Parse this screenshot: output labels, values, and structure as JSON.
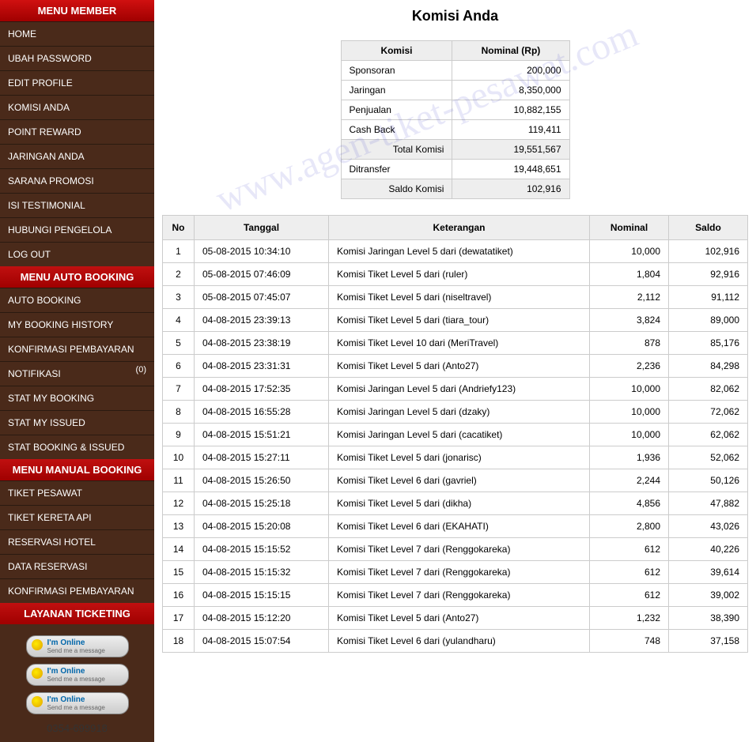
{
  "watermark": "www.agen-tiket-pesawat.com",
  "phone": "0354-699918",
  "sidebar": {
    "groups": [
      {
        "header": "MENU MEMBER",
        "items": [
          {
            "label": "HOME"
          },
          {
            "label": "UBAH PASSWORD"
          },
          {
            "label": "EDIT PROFILE"
          },
          {
            "label": "KOMISI ANDA"
          },
          {
            "label": "POINT REWARD"
          },
          {
            "label": "JARINGAN ANDA"
          },
          {
            "label": "SARANA PROMOSI"
          },
          {
            "label": "ISI TESTIMONIAL"
          },
          {
            "label": "HUBUNGI PENGELOLA"
          },
          {
            "label": "LOG OUT"
          }
        ]
      },
      {
        "header": "MENU AUTO BOOKING",
        "items": [
          {
            "label": "AUTO BOOKING"
          },
          {
            "label": "MY BOOKING HISTORY"
          },
          {
            "label": "KONFIRMASI PEMBAYARAN"
          },
          {
            "label": "NOTIFIKASI",
            "badge": "(0)"
          },
          {
            "label": "STAT MY BOOKING"
          },
          {
            "label": "STAT MY ISSUED"
          },
          {
            "label": "STAT BOOKING & ISSUED"
          }
        ]
      },
      {
        "header": "MENU MANUAL BOOKING",
        "items": [
          {
            "label": "TIKET PESAWAT"
          },
          {
            "label": "TIKET KERETA API"
          },
          {
            "label": "RESERVASI HOTEL"
          },
          {
            "label": "DATA RESERVASI"
          },
          {
            "label": "KONFIRMASI PEMBAYARAN"
          }
        ]
      },
      {
        "header": "LAYANAN TICKETING",
        "items": []
      }
    ]
  },
  "online": {
    "title": "I'm Online",
    "sub": "Send me a message"
  },
  "page": {
    "title": "Komisi Anda"
  },
  "summary": {
    "headers": [
      "Komisi",
      "Nominal (Rp)"
    ],
    "rows": [
      {
        "label": "Sponsoran",
        "value": "200,000"
      },
      {
        "label": "Jaringan",
        "value": "8,350,000"
      },
      {
        "label": "Penjualan",
        "value": "10,882,155"
      },
      {
        "label": "Cash Back",
        "value": "119,411"
      }
    ],
    "totals": [
      {
        "label": "Total Komisi",
        "value": "19,551,567"
      },
      {
        "label": "Ditransfer",
        "value": "19,448,651"
      },
      {
        "label": "Saldo Komisi",
        "value": "102,916"
      }
    ]
  },
  "table": {
    "headers": [
      "No",
      "Tanggal",
      "Keterangan",
      "Nominal",
      "Saldo"
    ],
    "rows": [
      {
        "no": "1",
        "tgl": "05-08-2015 10:34:10",
        "ket": "Komisi Jaringan Level 5 dari (dewatatiket)",
        "nom": "10,000",
        "saldo": "102,916"
      },
      {
        "no": "2",
        "tgl": "05-08-2015 07:46:09",
        "ket": "Komisi Tiket Level 5 dari (ruler)",
        "nom": "1,804",
        "saldo": "92,916"
      },
      {
        "no": "3",
        "tgl": "05-08-2015 07:45:07",
        "ket": "Komisi Tiket Level 5 dari (niseltravel)",
        "nom": "2,112",
        "saldo": "91,112"
      },
      {
        "no": "4",
        "tgl": "04-08-2015 23:39:13",
        "ket": "Komisi Tiket Level 5 dari (tiara_tour)",
        "nom": "3,824",
        "saldo": "89,000"
      },
      {
        "no": "5",
        "tgl": "04-08-2015 23:38:19",
        "ket": "Komisi Tiket Level 10 dari (MeriTravel)",
        "nom": "878",
        "saldo": "85,176"
      },
      {
        "no": "6",
        "tgl": "04-08-2015 23:31:31",
        "ket": "Komisi Tiket Level 5 dari (Anto27)",
        "nom": "2,236",
        "saldo": "84,298"
      },
      {
        "no": "7",
        "tgl": "04-08-2015 17:52:35",
        "ket": "Komisi Jaringan Level 5 dari (Andriefy123)",
        "nom": "10,000",
        "saldo": "82,062"
      },
      {
        "no": "8",
        "tgl": "04-08-2015 16:55:28",
        "ket": "Komisi Jaringan Level 5 dari (dzaky)",
        "nom": "10,000",
        "saldo": "72,062"
      },
      {
        "no": "9",
        "tgl": "04-08-2015 15:51:21",
        "ket": "Komisi Jaringan Level 5 dari (cacatiket)",
        "nom": "10,000",
        "saldo": "62,062"
      },
      {
        "no": "10",
        "tgl": "04-08-2015 15:27:11",
        "ket": "Komisi Tiket Level 5 dari (jonarisc)",
        "nom": "1,936",
        "saldo": "52,062"
      },
      {
        "no": "11",
        "tgl": "04-08-2015 15:26:50",
        "ket": "Komisi Tiket Level 6 dari (gavriel)",
        "nom": "2,244",
        "saldo": "50,126"
      },
      {
        "no": "12",
        "tgl": "04-08-2015 15:25:18",
        "ket": "Komisi Tiket Level 5 dari (dikha)",
        "nom": "4,856",
        "saldo": "47,882"
      },
      {
        "no": "13",
        "tgl": "04-08-2015 15:20:08",
        "ket": "Komisi Tiket Level 6 dari (EKAHATI)",
        "nom": "2,800",
        "saldo": "43,026"
      },
      {
        "no": "14",
        "tgl": "04-08-2015 15:15:52",
        "ket": "Komisi Tiket Level 7 dari (Renggokareka)",
        "nom": "612",
        "saldo": "40,226"
      },
      {
        "no": "15",
        "tgl": "04-08-2015 15:15:32",
        "ket": "Komisi Tiket Level 7 dari (Renggokareka)",
        "nom": "612",
        "saldo": "39,614"
      },
      {
        "no": "16",
        "tgl": "04-08-2015 15:15:15",
        "ket": "Komisi Tiket Level 7 dari (Renggokareka)",
        "nom": "612",
        "saldo": "39,002"
      },
      {
        "no": "17",
        "tgl": "04-08-2015 15:12:20",
        "ket": "Komisi Tiket Level 5 dari (Anto27)",
        "nom": "1,232",
        "saldo": "38,390"
      },
      {
        "no": "18",
        "tgl": "04-08-2015 15:07:54",
        "ket": "Komisi Tiket Level 6 dari (yulandharu)",
        "nom": "748",
        "saldo": "37,158"
      }
    ]
  }
}
